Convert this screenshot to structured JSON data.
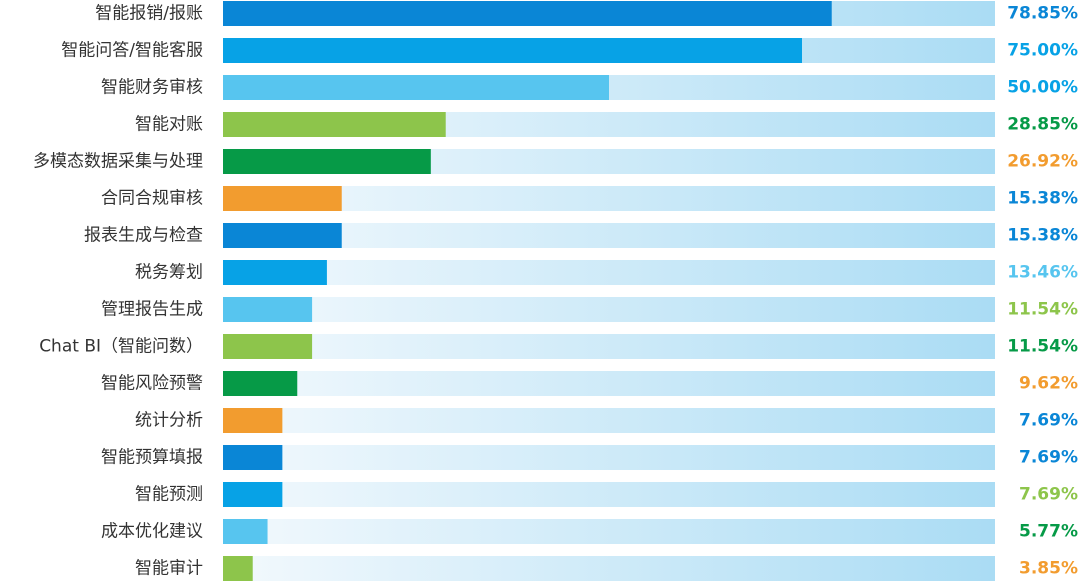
{
  "chart_data": {
    "type": "bar",
    "orientation": "horizontal",
    "categories": [
      "智能报销/报账",
      "智能问答/智能客服",
      "智能财务审核",
      "智能对账",
      "多模态数据采集与处理",
      "合同合规审核",
      "报表生成与检查",
      "税务筹划",
      "管理报告生成",
      "Chat BI（智能问数）",
      "智能风险预警",
      "统计分析",
      "智能预算填报",
      "智能预测",
      "成本优化建议",
      "智能审计"
    ],
    "values": [
      78.85,
      75.0,
      50.0,
      28.85,
      26.92,
      15.38,
      15.38,
      13.46,
      11.54,
      11.54,
      9.62,
      7.69,
      7.69,
      7.69,
      5.77,
      3.85
    ],
    "value_labels": [
      "78.85%",
      "75.00%",
      "50.00%",
      "28.85%",
      "26.92%",
      "15.38%",
      "15.38%",
      "13.46%",
      "11.54%",
      "11.54%",
      "9.62%",
      "7.69%",
      "7.69%",
      "7.69%",
      "5.77%",
      "3.85%"
    ],
    "unit": "%",
    "xlim": [
      0,
      100
    ],
    "bar_colors": [
      "#0a86d6",
      "#07a2e6",
      "#57c5ef",
      "#8dc54b",
      "#069a47",
      "#f29c2f",
      "#0a86d6",
      "#07a2e6",
      "#57c5ef",
      "#8dc54b",
      "#069a47",
      "#f29c2f",
      "#0a86d6",
      "#07a2e6",
      "#57c5ef",
      "#8dc54b"
    ],
    "label_colors": [
      "#0a86d6",
      "#07a2e6",
      "#07a2e6",
      "#069a47",
      "#f29c2f",
      "#0a86d6",
      "#0a86d6",
      "#57c5ef",
      "#8dc54b",
      "#069a47",
      "#f29c2f",
      "#0a86d6",
      "#0a86d6",
      "#8dc54b",
      "#069a47",
      "#f29c2f"
    ],
    "track_color_start": "#f3f9fd",
    "track_color_end": "#aadcf4",
    "grid": false,
    "legend": false
  }
}
